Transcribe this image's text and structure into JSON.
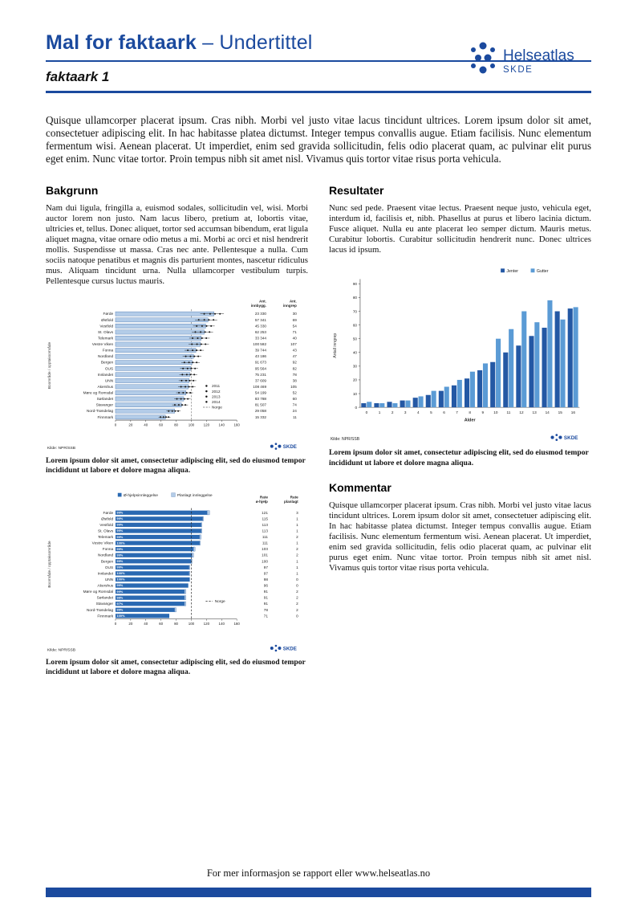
{
  "colors": {
    "accent": "#1b4a9e",
    "bar_light": "#b3cce8",
    "bar_light_border": "#2b5d9e",
    "jenter": "#2458a4",
    "gutter": "#5b9bd5",
    "ohjelp": "#2a69b2",
    "planlagt": "#b3cce8"
  },
  "header": {
    "title_bold": "Mal for faktaark",
    "title_rest": "– Undertittel",
    "subtitle": "faktaark 1",
    "logo_text": "Helseatlas",
    "logo_sub": "SKDE"
  },
  "intro": "Quisque ullamcorper placerat ipsum. Cras nibh. Morbi vel justo vitae lacus tincidunt ultrices. Lorem ipsum dolor sit amet, consectetuer adipiscing elit. In hac habitasse platea dictumst. Integer tempus convallis augue. Etiam facilisis. Nunc elementum fermentum wisi. Aenean placerat. Ut imperdiet, enim sed gravida sollicitudin, felis odio placerat quam, ac pulvinar elit purus eget enim. Nunc vitae tortor. Proin tempus nibh sit amet nisl. Vivamus quis tortor vitae risus porta vehicula.",
  "sections": {
    "bakgrunn": {
      "heading": "Bakgrunn",
      "body": "Nam dui ligula, fringilla a, euismod sodales, sollicitudin vel, wisi. Morbi auctor lorem non justo. Nam lacus libero, pretium at, lobortis vitae, ultricies et, tellus. Donec aliquet, tortor sed accumsan bibendum, erat ligula aliquet magna, vitae ornare odio metus a mi. Morbi ac orci et nisl hendrerit mollis. Suspendisse ut massa. Cras nec ante. Pellentesque a nulla. Cum sociis natoque penatibus et magnis dis parturient montes, nascetur ridiculus mus. Aliquam tincidunt urna. Nulla ullamcorper vestibulum turpis. Pellentesque cursus luctus mauris."
    },
    "resultater": {
      "heading": "Resultater",
      "body": "Nunc sed pede. Praesent vitae lectus. Praesent neque justo, vehicula eget, interdum id, facilisis et, nibh. Phasellus at purus et libero lacinia dictum. Fusce aliquet. Nulla eu ante placerat leo semper dictum. Mauris metus. Curabitur lobortis. Curabitur sollicitudin hendrerit nunc. Donec ultrices lacus id ipsum."
    },
    "kommentar": {
      "heading": "Kommentar",
      "body": "Quisque ullamcorper placerat ipsum. Cras nibh. Morbi vel justo vitae lacus tincidunt ultrices. Lorem ipsum dolor sit amet, consectetuer adipiscing elit. In hac habitasse platea dictumst. Integer tempus convallis augue. Etiam facilisis. Nunc elementum fermentum wisi. Aenean placerat. Ut imperdiet, enim sed gravida sollicitudin, felis odio placerat quam, ac pulvinar elit purus eget enim. Nunc vitae tortor. Proin tempus nibh sit amet nisl. Vivamus quis tortor vitae risus porta vehicula."
    }
  },
  "figures": {
    "fig1_caption": "Lorem ipsum dolor sit amet, consectetur adipiscing elit, sed do eiusmod tempor incididunt ut labore et dolore magna aliqua.",
    "fig2_caption": "Lorem ipsum dolor sit amet, consectetur adipiscing elit, sed do eiusmod tempor incididunt ut labore et dolore magna aliqua.",
    "fig3_caption": "Lorem ipsum dolor sit amet, consectetur adipiscing elit, sed do eiusmod tempor incididunt ut labore et dolore magna aliqua."
  },
  "footer": {
    "text": "For mer informasjon se rapport eller www.helseatlas.no"
  },
  "chart_data": [
    {
      "type": "bar",
      "orientation": "horizontal",
      "title": "",
      "categories": [
        "Førde",
        "Østfold",
        "Vestfold",
        "St. Olavs",
        "Telemark",
        "Vestre Viken",
        "Fonna",
        "Nordland",
        "Bergen",
        "OUS",
        "Innlandet",
        "UNN",
        "Akershus",
        "Møre og Romsdal",
        "Sørlandet",
        "Stavanger",
        "Nord-Trøndelag",
        "Finnmark"
      ],
      "values": [
        130,
        122,
        119,
        117,
        113,
        112,
        106,
        103,
        101,
        99,
        98,
        97,
        96,
        93,
        90,
        87,
        78,
        66
      ],
      "table": {
        "col1_header": "Ant. innbygg.",
        "col2_header": "Ant. inngrep",
        "col1": [
          "23 330",
          "57 341",
          "45 330",
          "62 253",
          "33 344",
          "100 582",
          "39 744",
          "43 186",
          "91 673",
          "95 564",
          "75 231",
          "37 609",
          "108 469",
          "54 199",
          "83 788",
          "81 507",
          "29 058",
          "15 332"
        ],
        "col2": [
          "30",
          "69",
          "54",
          "71",
          "40",
          "107",
          "43",
          "47",
          "92",
          "82",
          "78",
          "38",
          "105",
          "52",
          "60",
          "74",
          "24",
          "11"
        ]
      },
      "legend": [
        "2011",
        "2012",
        "2013",
        "2014",
        "Norge"
      ],
      "ylabel": "Boområde / opptaksområde",
      "xlabel": "",
      "xticks": [
        0,
        20,
        40,
        60,
        80,
        100,
        120,
        140,
        160
      ],
      "xlim": [
        0,
        160
      ],
      "reference_line": 100,
      "source": "Kilde: NPR/SSB"
    },
    {
      "type": "bar",
      "orientation": "vertical",
      "title": "",
      "x": [
        0,
        1,
        2,
        3,
        4,
        5,
        6,
        7,
        8,
        9,
        10,
        11,
        12,
        13,
        14,
        15,
        16
      ],
      "series": [
        {
          "name": "Jenter",
          "values": [
            3,
            3,
            4,
            5,
            7,
            9,
            12,
            16,
            21,
            27,
            33,
            40,
            45,
            52,
            58,
            70,
            72
          ]
        },
        {
          "name": "Gutter",
          "values": [
            4,
            3,
            3,
            5,
            8,
            12,
            15,
            20,
            26,
            32,
            50,
            57,
            70,
            62,
            78,
            64,
            73
          ]
        }
      ],
      "xlabel": "Alder",
      "ylabel": "Antall inngrep",
      "ylim": [
        0,
        90
      ],
      "yticks": [
        0,
        10,
        20,
        30,
        40,
        50,
        60,
        70,
        80,
        90
      ],
      "legend_position": "top-right",
      "grid": false,
      "source": "Kilde: NPR/SSB"
    },
    {
      "type": "bar",
      "orientation": "horizontal",
      "stacked": true,
      "title": "",
      "categories": [
        "Førde",
        "Østfold",
        "Vestfold",
        "St. Olavs",
        "Telemark",
        "Vestre Viken",
        "Fonna",
        "Nordland",
        "Bergen",
        "OUS",
        "Innlandet",
        "UNN",
        "Akershus",
        "Møre og Romsdal",
        "Sørlandet",
        "Stavanger",
        "Nord-Trøndelag",
        "Finnmark"
      ],
      "series": [
        {
          "name": "Ø-hjelpsinnleggelse",
          "values": [
            121,
            115,
            113,
            113,
            111,
            111,
            103,
            101,
            100,
            97,
            97,
            98,
            96,
            91,
            91,
            91,
            78,
            71
          ]
        },
        {
          "name": "Planlagt innleggelse",
          "values": [
            3,
            1,
            1,
            1,
            2,
            1,
            2,
            2,
            1,
            1,
            1,
            0,
            0,
            2,
            2,
            2,
            2,
            0
          ]
        }
      ],
      "percent_labels": [
        "99%",
        "99%",
        "99%",
        "99%",
        "99%",
        "100%",
        "99%",
        "99%",
        "99%",
        "99%",
        "100%",
        "100%",
        "99%",
        "99%",
        "98%",
        "97%",
        "99%",
        "100%"
      ],
      "table": {
        "col1_header": "Rate ø-hjelp",
        "col2_header": "Rate planlagt",
        "col1": [
          "121",
          "115",
          "113",
          "113",
          "111",
          "111",
          "103",
          "101",
          "100",
          "97",
          "97",
          "98",
          "96",
          "91",
          "91",
          "91",
          "78",
          "71"
        ],
        "col2": [
          "3",
          "1",
          "1",
          "1",
          "2",
          "1",
          "2",
          "2",
          "1",
          "1",
          "1",
          "0",
          "0",
          "2",
          "2",
          "2",
          "2",
          "0"
        ]
      },
      "ylabel": "Boområde / opptaksområde",
      "xlabel": "",
      "xticks": [
        0,
        20,
        40,
        60,
        80,
        100,
        120,
        140,
        160
      ],
      "xlim": [
        0,
        160
      ],
      "reference_line": 100,
      "reference_label": "Norge",
      "source": "Kilde: NPR/SSB"
    }
  ]
}
